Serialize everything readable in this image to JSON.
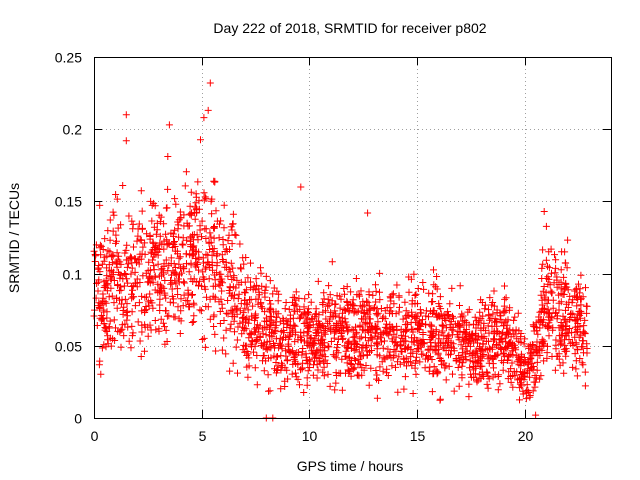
{
  "chart_data": {
    "type": "scatter",
    "title": "Day 222 of 2018, SRMTID for receiver p802",
    "xlabel": "GPS time / hours",
    "ylabel": "SRMTID / TECUs",
    "xlim": [
      0,
      24
    ],
    "ylim": [
      0,
      0.25
    ],
    "xticks": [
      0,
      5,
      10,
      15,
      20
    ],
    "xtick_labels": [
      "0",
      "5",
      "10",
      "15",
      "20"
    ],
    "yticks": [
      0,
      0.05,
      0.1,
      0.15,
      0.2,
      0.25
    ],
    "ytick_labels": [
      "0",
      "0.05",
      "0.1",
      "0.15",
      "0.2",
      "0.25"
    ],
    "grid": true,
    "marker": "plus",
    "marker_color": "#ff0000",
    "data_extent_hours": [
      0,
      22.9
    ],
    "trend": [
      {
        "x": 0.0,
        "y": 0.085
      },
      {
        "x": 1.0,
        "y": 0.095
      },
      {
        "x": 2.0,
        "y": 0.095
      },
      {
        "x": 3.0,
        "y": 0.1
      },
      {
        "x": 4.0,
        "y": 0.11
      },
      {
        "x": 5.0,
        "y": 0.115
      },
      {
        "x": 6.0,
        "y": 0.1
      },
      {
        "x": 7.0,
        "y": 0.075
      },
      {
        "x": 8.0,
        "y": 0.06
      },
      {
        "x": 9.0,
        "y": 0.055
      },
      {
        "x": 10.0,
        "y": 0.055
      },
      {
        "x": 11.0,
        "y": 0.06
      },
      {
        "x": 12.0,
        "y": 0.06
      },
      {
        "x": 13.0,
        "y": 0.06
      },
      {
        "x": 14.0,
        "y": 0.058
      },
      {
        "x": 15.0,
        "y": 0.06
      },
      {
        "x": 16.0,
        "y": 0.058
      },
      {
        "x": 17.0,
        "y": 0.052
      },
      {
        "x": 18.0,
        "y": 0.052
      },
      {
        "x": 19.0,
        "y": 0.055
      },
      {
        "x": 19.5,
        "y": 0.05
      },
      {
        "x": 20.0,
        "y": 0.03
      },
      {
        "x": 20.5,
        "y": 0.045
      },
      {
        "x": 21.0,
        "y": 0.08
      },
      {
        "x": 22.0,
        "y": 0.075
      },
      {
        "x": 22.9,
        "y": 0.06
      }
    ],
    "notable_points": [
      {
        "x": 1.5,
        "y": 0.21
      },
      {
        "x": 1.5,
        "y": 0.192
      },
      {
        "x": 3.5,
        "y": 0.203
      },
      {
        "x": 5.1,
        "y": 0.208
      },
      {
        "x": 5.3,
        "y": 0.213
      },
      {
        "x": 5.4,
        "y": 0.232
      },
      {
        "x": 9.6,
        "y": 0.16
      },
      {
        "x": 8.0,
        "y": 0.0
      },
      {
        "x": 8.3,
        "y": 0.0
      },
      {
        "x": 20.5,
        "y": 0.002
      },
      {
        "x": 20.9,
        "y": 0.143
      },
      {
        "x": 12.7,
        "y": 0.142
      }
    ],
    "approx_point_count": 2400
  }
}
